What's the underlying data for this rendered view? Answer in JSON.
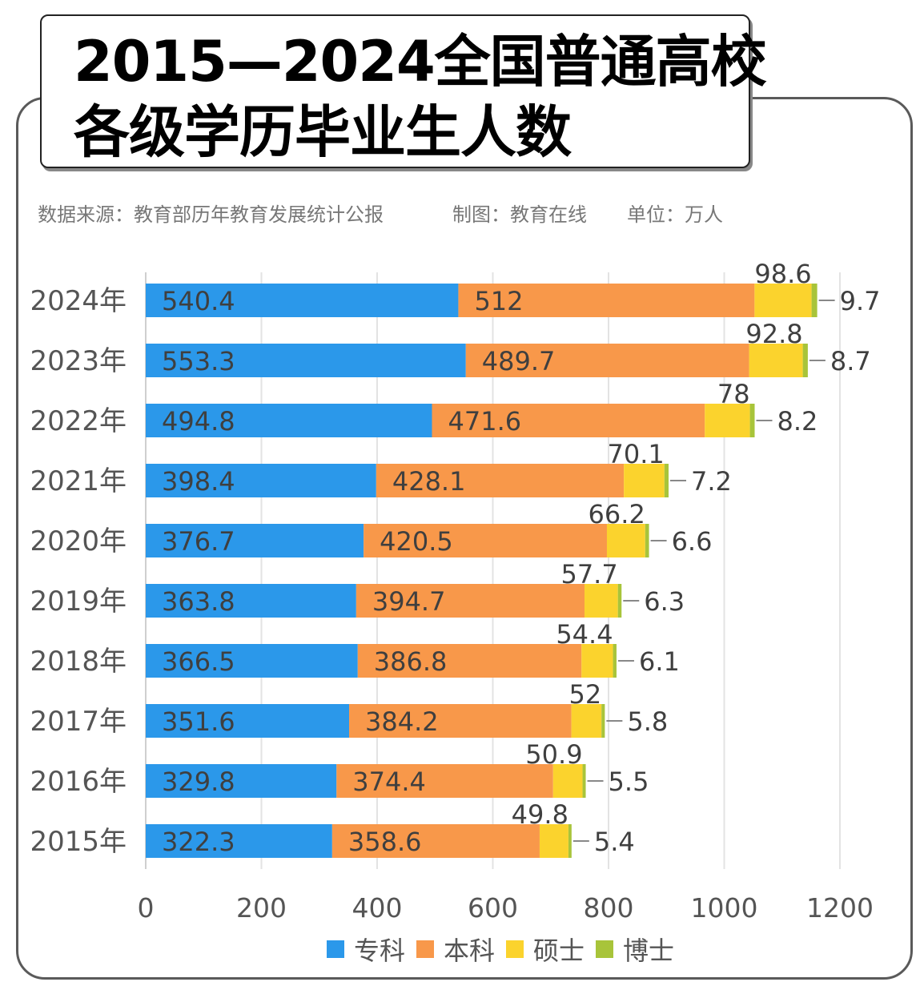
{
  "title": {
    "line1": "2015—2024全国普通高校",
    "line2": "各级学历毕业生人数"
  },
  "meta": {
    "source": "数据来源：教育部历年教育发展统计公报",
    "maker": "制图：教育在线",
    "unit": "单位：万人"
  },
  "colors": {
    "专科": "#2b98ea",
    "本科": "#f8984a",
    "硕士": "#fbd32d",
    "博士": "#a8c43a"
  },
  "chart_data": {
    "type": "bar",
    "orientation": "horizontal",
    "stacked": true,
    "title": "2015—2024全国普通高校各级学历毕业生人数",
    "xlabel": "",
    "ylabel": "",
    "unit": "万人",
    "xlim": [
      0,
      1200
    ],
    "xticks": [
      0,
      200,
      400,
      600,
      800,
      1000,
      1200
    ],
    "grid": true,
    "legend_position": "bottom",
    "categories": [
      "2024年",
      "2023年",
      "2022年",
      "2021年",
      "2020年",
      "2019年",
      "2018年",
      "2017年",
      "2016年",
      "2015年"
    ],
    "series": [
      {
        "name": "专科",
        "values": [
          540.4,
          553.3,
          494.8,
          398.4,
          376.7,
          363.8,
          366.5,
          351.6,
          329.8,
          322.3
        ]
      },
      {
        "name": "本科",
        "values": [
          512,
          489.7,
          471.6,
          428.1,
          420.5,
          394.7,
          386.8,
          384.2,
          374.4,
          358.6
        ]
      },
      {
        "name": "硕士",
        "values": [
          98.6,
          92.8,
          78,
          70.1,
          66.2,
          57.7,
          54.4,
          52,
          50.9,
          49.8
        ]
      },
      {
        "name": "博士",
        "values": [
          9.7,
          8.7,
          8.2,
          7.2,
          6.6,
          6.3,
          6.1,
          5.8,
          5.5,
          5.4
        ]
      }
    ]
  }
}
